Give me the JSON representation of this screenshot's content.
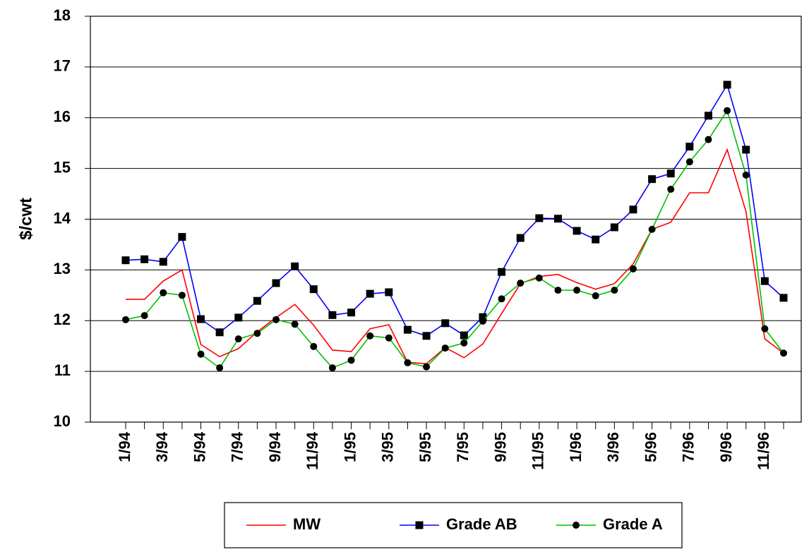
{
  "chart_data": {
    "type": "line",
    "y_label": "$/cwt",
    "categories": [
      "1/94",
      null,
      "3/94",
      null,
      "5/94",
      null,
      "7/94",
      null,
      "9/94",
      null,
      "11/94",
      null,
      "1/95",
      null,
      "3/95",
      null,
      "5/95",
      null,
      "7/95",
      null,
      "9/95",
      null,
      "11/95",
      null,
      "1/96",
      null,
      "3/96",
      null,
      "5/96",
      null,
      "7/96",
      null,
      "9/96",
      null,
      "11/96",
      null
    ],
    "series": [
      {
        "name": "MW",
        "color": "#ff0000",
        "marker": "none",
        "values": [
          12.42,
          12.42,
          12.78,
          13.0,
          11.53,
          11.29,
          11.45,
          11.78,
          12.06,
          12.32,
          11.91,
          11.42,
          11.39,
          11.84,
          11.92,
          11.18,
          11.15,
          11.47,
          11.27,
          11.54,
          12.14,
          12.73,
          12.87,
          12.91,
          12.75,
          12.62,
          12.73,
          13.12,
          13.8,
          13.94,
          14.52,
          14.52,
          15.37,
          14.15,
          11.64,
          11.36
        ]
      },
      {
        "name": "Grade AB",
        "color": "#0000ff",
        "marker": "square",
        "values": [
          13.19,
          13.21,
          13.16,
          13.65,
          12.03,
          11.77,
          12.06,
          12.39,
          12.74,
          13.07,
          12.62,
          12.11,
          12.16,
          12.53,
          12.56,
          11.82,
          11.7,
          11.95,
          11.71,
          12.07,
          12.96,
          13.63,
          14.02,
          14.01,
          13.77,
          13.6,
          13.84,
          14.19,
          14.79,
          14.9,
          15.43,
          16.04,
          16.65,
          15.37,
          12.78,
          12.45
        ]
      },
      {
        "name": "Grade A",
        "color": "#00c000",
        "marker": "circle",
        "values": [
          12.02,
          12.1,
          12.55,
          12.5,
          11.34,
          11.07,
          11.64,
          11.75,
          12.02,
          11.93,
          11.49,
          11.07,
          11.22,
          11.7,
          11.66,
          11.17,
          11.09,
          11.46,
          11.56,
          11.99,
          12.43,
          12.74,
          12.84,
          12.6,
          12.6,
          12.49,
          12.6,
          13.02,
          13.8,
          14.59,
          15.13,
          15.57,
          16.14,
          14.87,
          11.84,
          11.36
        ]
      }
    ],
    "ylim": [
      10,
      18
    ],
    "yticks": [
      10,
      11,
      12,
      13,
      14,
      15,
      16,
      17,
      18
    ],
    "grid": true,
    "legend": "bottom"
  }
}
